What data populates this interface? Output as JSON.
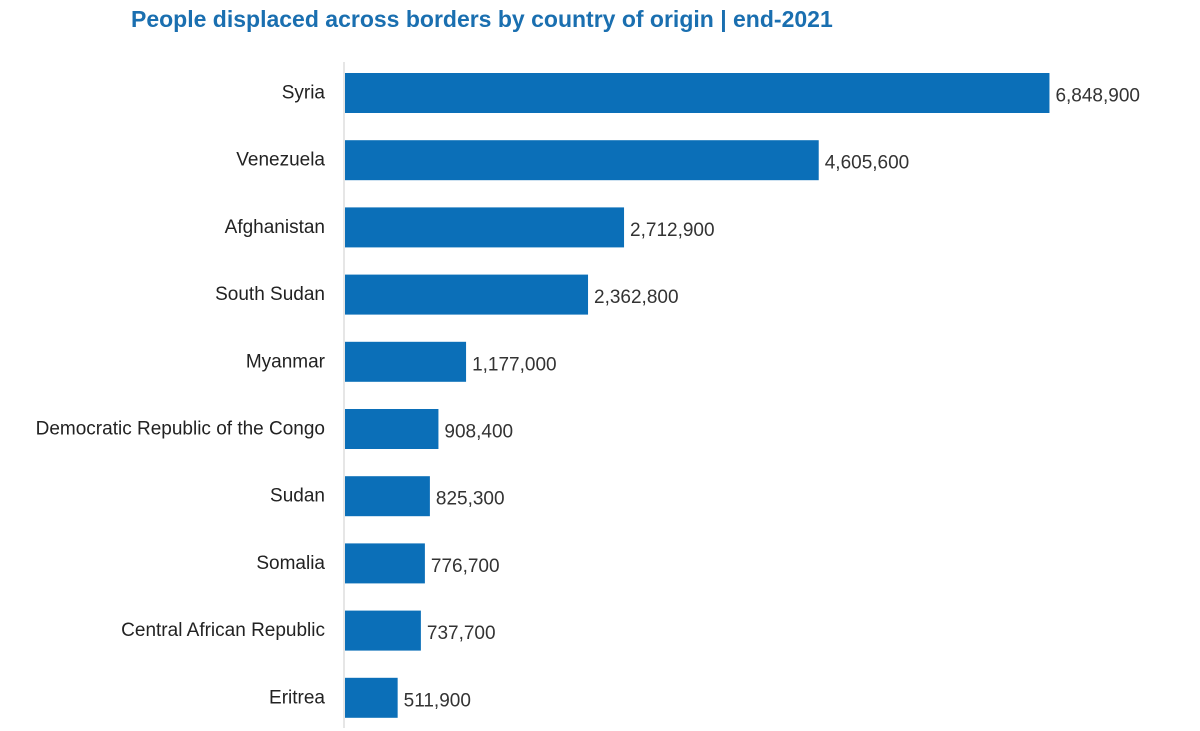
{
  "chart_data": {
    "type": "bar",
    "orientation": "horizontal",
    "title": "People displaced across borders by country of origin | end-2021",
    "categories": [
      "Syria",
      "Venezuela",
      "Afghanistan",
      "South Sudan",
      "Myanmar",
      "Democratic Republic of the Congo",
      "Sudan",
      "Somalia",
      "Central African Republic",
      "Eritrea"
    ],
    "values": [
      6848900,
      4605600,
      2712900,
      2362800,
      1177000,
      908400,
      825300,
      776700,
      737700,
      511900
    ],
    "value_labels": [
      "6,848,900",
      "4,605,600",
      "2,712,900",
      "2,362,800",
      "1,177,000",
      "908,400",
      "825,300",
      "776,700",
      "737,700",
      "511,900"
    ],
    "xlim": [
      0,
      7000000
    ],
    "grid": false,
    "legend": "none",
    "colors": {
      "bar": "#0b6fb8",
      "title": "#1a6fb0",
      "axis": "#cccccc"
    }
  }
}
